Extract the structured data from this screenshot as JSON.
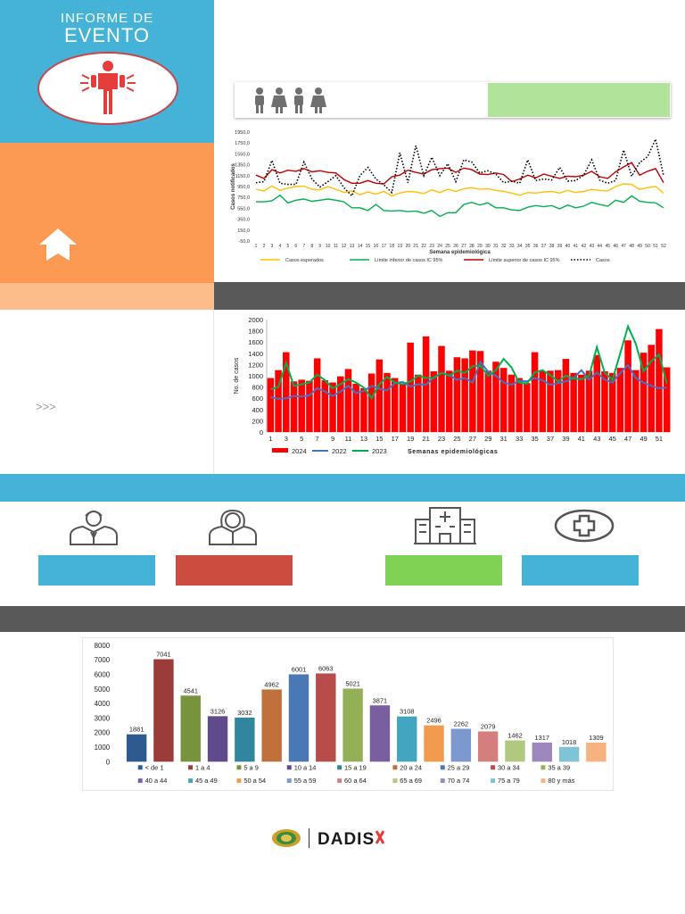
{
  "header": {
    "line1": "INFORME DE",
    "line2": "EVENTO"
  },
  "icons": {
    "event_logo": "person-in-distress-icon",
    "people": "people-group-icon",
    "home": "house-arrow-icon",
    "doctor_male": "male-doctor-icon",
    "doctor_female": "female-doctor-icon",
    "hospital": "hospital-building-icon",
    "health_cross": "health-cross-icon"
  },
  "sidebar": {
    "arrows": ">>>"
  },
  "colors": {
    "blue": "#45b2d8",
    "orange": "#fc9a53",
    "peach": "#fdbd8a",
    "green_box": "#b1e39a",
    "dark_band": "#595959",
    "cat_blue": "#45b2d8",
    "cat_red": "#cd4c40",
    "cat_green": "#7ed352",
    "cat_blue2": "#45b2d8"
  },
  "chart_data": [
    {
      "type": "line",
      "title": "",
      "ylabel": "Casos notificados",
      "xlabel": "Semana epidemiológica",
      "y_ticks": [
        "1950,0",
        "1750,0",
        "1550,0",
        "1350,0",
        "1150,0",
        "950,0",
        "750,0",
        "550,0",
        "350,0",
        "150,0",
        "-50,0"
      ],
      "ylim": [
        -50,
        1950
      ],
      "x": [
        1,
        2,
        3,
        4,
        5,
        6,
        7,
        8,
        9,
        10,
        11,
        12,
        13,
        14,
        15,
        16,
        17,
        18,
        19,
        20,
        21,
        22,
        23,
        24,
        25,
        26,
        27,
        28,
        29,
        30,
        31,
        32,
        33,
        34,
        35,
        36,
        37,
        38,
        39,
        40,
        41,
        42,
        43,
        44,
        45,
        46,
        47,
        48,
        49,
        50,
        51,
        52
      ],
      "legend": [
        "Casos esperados",
        "Límite inferior de casos IC 95%",
        "Límite superior de casos IC 95%",
        "Casos"
      ],
      "series": [
        {
          "name": "Casos esperados",
          "color": "#ffc000",
          "style": "solid",
          "values": [
            900,
            870,
            960,
            880,
            920,
            950,
            960,
            900,
            890,
            950,
            900,
            840,
            870,
            800,
            850,
            810,
            860,
            780,
            830,
            860,
            850,
            820,
            890,
            840,
            900,
            860,
            910,
            930,
            900,
            910,
            880,
            860,
            830,
            790,
            840,
            830,
            850,
            860,
            830,
            880,
            840,
            860,
            900,
            880,
            870,
            950,
            1000,
            990,
            900,
            930,
            950,
            830
          ]
        },
        {
          "name": "Límite inferior de casos IC 95%",
          "color": "#00b050",
          "style": "solid",
          "values": [
            670,
            670,
            690,
            790,
            650,
            700,
            720,
            680,
            700,
            720,
            700,
            670,
            560,
            560,
            510,
            620,
            510,
            500,
            510,
            490,
            500,
            460,
            510,
            400,
            470,
            470,
            620,
            660,
            610,
            650,
            560,
            560,
            520,
            510,
            570,
            600,
            580,
            600,
            540,
            610,
            560,
            590,
            660,
            620,
            590,
            700,
            660,
            780,
            680,
            660,
            650,
            560
          ]
        },
        {
          "name": "Límite superior de casos IC 95%",
          "color": "#c00000",
          "style": "solid",
          "values": [
            1160,
            1100,
            1260,
            1200,
            1250,
            1230,
            1280,
            1220,
            1240,
            1210,
            1200,
            1080,
            1010,
            1010,
            1060,
            1010,
            1000,
            1130,
            1160,
            1250,
            1210,
            1180,
            1260,
            1280,
            1290,
            1210,
            1290,
            1260,
            1180,
            1170,
            1200,
            1170,
            1040,
            1090,
            1160,
            1110,
            1180,
            1140,
            1100,
            1140,
            1130,
            1160,
            1230,
            1130,
            1100,
            1220,
            1310,
            1390,
            1160,
            1230,
            1280,
            1020
          ]
        },
        {
          "name": "Casos",
          "color": "#000000",
          "style": "dotted",
          "values": [
            1020,
            1040,
            1430,
            1010,
            990,
            990,
            1400,
            1090,
            940,
            1040,
            1150,
            930,
            780,
            1150,
            1300,
            1090,
            980,
            840,
            1570,
            1020,
            1700,
            1150,
            1490,
            1150,
            1370,
            1040,
            1440,
            1400,
            1200,
            1240,
            1180,
            1020,
            1050,
            1010,
            1440,
            1060,
            1090,
            1070,
            1300,
            1050,
            1060,
            1160,
            1440,
            1070,
            1010,
            1060,
            1620,
            1140,
            1390,
            1500,
            1820,
            1150
          ]
        }
      ]
    },
    {
      "type": "bar",
      "ylabel": "No. de casos",
      "xlabel": "Semanas epidemiológicas",
      "ylim": [
        0,
        2000
      ],
      "y_ticks": [
        0,
        200,
        400,
        600,
        800,
        1000,
        1200,
        1400,
        1600,
        1800,
        2000
      ],
      "x_tick_labels": [
        "1",
        "3",
        "5",
        "7",
        "9",
        "11",
        "13",
        "15",
        "17",
        "19",
        "21",
        "23",
        "25",
        "27",
        "29",
        "31",
        "33",
        "35",
        "37",
        "39",
        "41",
        "43",
        "45",
        "47",
        "49",
        "51"
      ],
      "legend": [
        "2024",
        "2022",
        "2023"
      ],
      "series": [
        {
          "name": "2024",
          "color": "#ff0000",
          "kind": "bar",
          "values": [
            960,
            1100,
            1420,
            900,
            930,
            910,
            1310,
            920,
            880,
            990,
            1120,
            860,
            780,
            1040,
            1290,
            1050,
            960,
            850,
            1590,
            1020,
            1700,
            1080,
            1530,
            1090,
            1330,
            1310,
            1450,
            1440,
            1090,
            1250,
            1140,
            1020,
            960,
            870,
            1420,
            1080,
            1090,
            1100,
            1300,
            1050,
            1020,
            1090,
            1370,
            1080,
            1050,
            1140,
            1630,
            1100,
            1410,
            1550,
            1830,
            1150
          ]
        },
        {
          "name": "2022",
          "color": "#4472c4",
          "kind": "line",
          "values": [
            620,
            590,
            600,
            640,
            630,
            650,
            780,
            720,
            640,
            720,
            820,
            690,
            730,
            820,
            770,
            740,
            870,
            890,
            810,
            850,
            840,
            970,
            1050,
            1010,
            930,
            960,
            880,
            1250,
            1070,
            1000,
            880,
            840,
            910,
            900,
            960,
            920,
            840,
            870,
            900,
            960,
            1100,
            930,
            1060,
            930,
            880,
            1050,
            1190,
            960,
            880,
            820,
            780,
            790
          ]
        },
        {
          "name": "2023",
          "color": "#00b050",
          "kind": "line",
          "values": [
            760,
            800,
            1230,
            820,
            850,
            880,
            1020,
            920,
            780,
            850,
            940,
            880,
            790,
            600,
            850,
            980,
            880,
            850,
            900,
            1000,
            960,
            960,
            1050,
            1000,
            1090,
            1050,
            1170,
            1180,
            1000,
            1100,
            1300,
            1150,
            880,
            860,
            1060,
            1100,
            1010,
            900,
            1000,
            950,
            940,
            1000,
            1510,
            1050,
            930,
            1400,
            1880,
            1570,
            1080,
            1260,
            1380,
            860
          ]
        }
      ]
    },
    {
      "type": "bar",
      "ylim": [
        0,
        8000
      ],
      "y_ticks": [
        0,
        1000,
        2000,
        3000,
        4000,
        5000,
        6000,
        7000,
        8000
      ],
      "categories": [
        "< de 1",
        "1 a 4",
        "5 a 9",
        "10 a 14",
        "15 a 19",
        "20 a 24",
        "25 a 29",
        "30 a 34",
        "35 a 39",
        "40 a 44",
        "45 a 49",
        "50 a 54",
        "55 a 59",
        "60 a 64",
        "65 a 69",
        "70 a 74",
        "75 a 79",
        "80 y más"
      ],
      "values": [
        1881,
        7041,
        4541,
        3126,
        3032,
        4962,
        6001,
        6063,
        5021,
        3871,
        3108,
        2496,
        2262,
        2079,
        1462,
        1317,
        1018,
        1309
      ],
      "colors": [
        "#2e5a8f",
        "#9b3c3a",
        "#77933c",
        "#5f4a8b",
        "#31859c",
        "#c0703a",
        "#4a78b5",
        "#b84c4b",
        "#93b056",
        "#7a5fa0",
        "#44a5c0",
        "#f29a4e",
        "#7d98cc",
        "#d47f7e",
        "#b0c97f",
        "#9d88bd",
        "#7fc3d6",
        "#f8b27f"
      ]
    }
  ],
  "footer": {
    "logo_text": "DADIS"
  }
}
